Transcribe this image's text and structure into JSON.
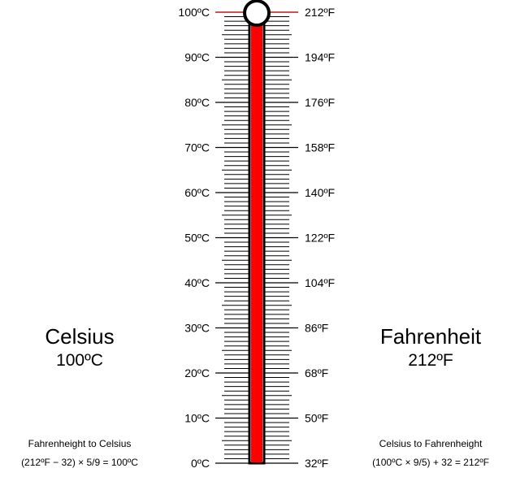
{
  "colors": {
    "mercury": "#ff0000",
    "outline": "#000000",
    "level_line": "#d32f2f",
    "bulb_fill": "#ffffff"
  },
  "thermometer": {
    "celsius": 100,
    "celsius_scale_min": 0,
    "celsius_scale_max": 100,
    "celsius_labels": [
      "0ºC",
      "10ºC",
      "20ºC",
      "30ºC",
      "40ºC",
      "50ºC",
      "60ºC",
      "70ºC",
      "80ºC",
      "90ºC",
      "100ºC"
    ],
    "fahrenheit_labels": [
      "32ºF",
      "50ºF",
      "68ºF",
      "86ºF",
      "104ºF",
      "122ºF",
      "140ºF",
      "158ºF",
      "176ºF",
      "194ºF",
      "212ºF"
    ]
  },
  "celsius_panel": {
    "title": "Celsius",
    "value": "100ºC"
  },
  "fahrenheit_panel": {
    "title": "Fahrenheit",
    "value": "212ºF"
  },
  "formulas": {
    "f_to_c_title": "Fahrenheight to Celsius",
    "f_to_c_eq": "(212ºF − 32) × 5/9 = 100ºC",
    "c_to_f_title": "Celsius to Fahrenheight",
    "c_to_f_eq": "(100ºC × 9/5) + 32 = 212ºF"
  }
}
